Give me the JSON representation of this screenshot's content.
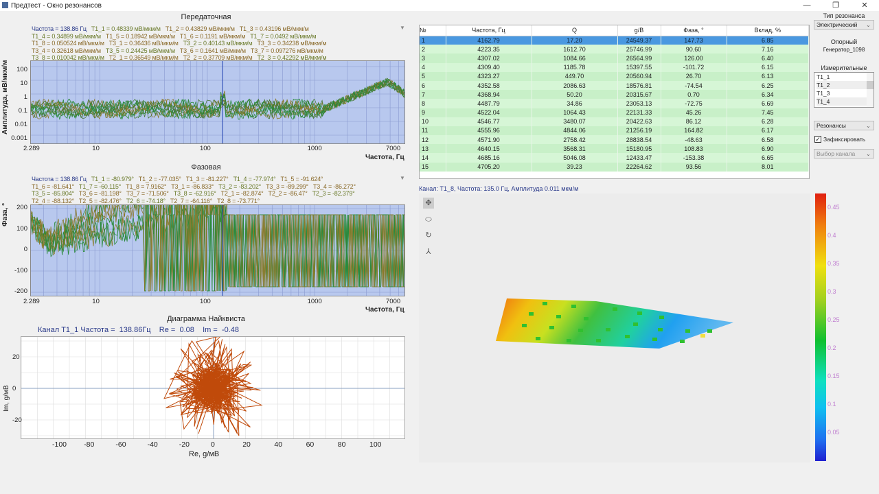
{
  "window": {
    "title": "Предтест - Окно резонансов",
    "minimize": "—",
    "restore": "❐",
    "close": "✕"
  },
  "transfer": {
    "title": "Передаточная",
    "legend_freq": "Частота = 138.86 Гц",
    "legend": [
      "T1_1 = 0.48339 мВ/мкм/м",
      "T1_2 = 0.43829 мВ/мкм/м",
      "T1_3 = 0.43196 мВ/мкм/м",
      "T1_4 = 0.34899 мВ/мкм/м",
      "T1_5 = 0.18942 мВ/мкм/м",
      "T1_6 = 0.1191 мВ/мкм/м",
      "T1_7 = 0.0492 мВ/мкм/м",
      "T1_8 = 0.050524 мВ/мкм/м",
      "T3_1 = 0.36436 мВ/мкм/м",
      "T3_2 = 0.40143 мВ/мкм/м",
      "T3_3 = 0.34238 мВ/мкм/м",
      "T3_4 = 0.32618 мВ/мкм/м",
      "T3_5 = 0.24425 мВ/мкм/м",
      "T3_6 = 0.1641 мВ/мкм/м",
      "T3_7 = 0.097276 мВ/мкм/м",
      "T3_8 = 0.010042 мВ/мкм/м",
      "T2_1 = 0.36549 мВ/мкм/м",
      "T2_2 = 0.37709 мВ/мкм/м",
      "T2_3 = 0.42292 мВ/мкм/м"
    ],
    "ylabel": "Амплитуда, мВ/мкм/м",
    "xlabel": "Частота, Гц",
    "yticks": [
      "100",
      "10",
      "1",
      "0.1",
      "0.01",
      "0.001"
    ],
    "xticks": [
      "2.289",
      "10",
      "100",
      "1000",
      "7000"
    ]
  },
  "phase": {
    "title": "Фазовая",
    "legend_freq": "Частота = 138.86 Гц",
    "legend": [
      "T1_1 = -80.979°",
      "T1_2 = -77.035°",
      "T1_3 = -81.227°",
      "T1_4 = -77.974°",
      "T1_5 = -91.624°",
      "T1_6 = -81.641°",
      "T1_7 = -60.115°",
      "T1_8 = 7.9162°",
      "T3_1 = -86.833°",
      "T3_2 = -83.202°",
      "T3_3 = -89.299°",
      "T3_4 = -86.272°",
      "T3_5 = -85.804°",
      "T3_6 = -81.198°",
      "T3_7 = -71.506°",
      "T3_8 = -62.916°",
      "T2_1 = -82.874°",
      "T2_2 = -86.47°",
      "T2_3 = -82.379°",
      "T2_4 = -88.132°",
      "T2_5 = -82.476°",
      "T2_6 = -74.18°",
      "T2_7 = -64.116°",
      "T2_8 = -73.771°"
    ],
    "ylabel": "Фаза, °",
    "xlabel": "Частота, Гц",
    "yticks": [
      "200",
      "100",
      "0",
      "-100",
      "-200"
    ],
    "xticks": [
      "2.289",
      "10",
      "100",
      "1000",
      "7000"
    ]
  },
  "nyquist": {
    "title": "Диаграмма Найквиста",
    "info": "Канал T1_1 Частота =  138.86Гц    Re =  0.08    Im =  -0.48",
    "ylabel": "Im, g/мВ",
    "xlabel": "Re, g/мВ",
    "yticks": [
      "20",
      "0",
      "-20"
    ],
    "xticks": [
      "-100",
      "-80",
      "-60",
      "-40",
      "-20",
      "0",
      "20",
      "40",
      "60",
      "80",
      "100"
    ]
  },
  "table": {
    "headers": [
      "№",
      "Частота, Гц",
      "Q",
      "g/B",
      "Фаза, °",
      "Вклад, %"
    ],
    "rows": [
      [
        "1",
        "4162.79",
        "17.20",
        "24549.37",
        "147.73",
        "6.85"
      ],
      [
        "2",
        "4223.35",
        "1612.70",
        "25746.99",
        "90.60",
        "7.16"
      ],
      [
        "3",
        "4307.02",
        "1084.66",
        "26564.99",
        "126.00",
        "6.40"
      ],
      [
        "4",
        "4309.40",
        "1185.78",
        "15397.55",
        "-101.72",
        "6.15"
      ],
      [
        "5",
        "4323.27",
        "449.70",
        "20560.94",
        "26.70",
        "6.13"
      ],
      [
        "6",
        "4352.58",
        "2086.63",
        "18576.81",
        "-74.54",
        "6.25"
      ],
      [
        "7",
        "4368.94",
        "50.20",
        "20315.67",
        "0.70",
        "6.34"
      ],
      [
        "8",
        "4487.79",
        "34.86",
        "23053.13",
        "-72.75",
        "6.69"
      ],
      [
        "9",
        "4522.04",
        "1064.43",
        "22131.33",
        "45.26",
        "7.45"
      ],
      [
        "10",
        "4546.77",
        "3480.07",
        "20422.63",
        "86.12",
        "6.28"
      ],
      [
        "11",
        "4555.96",
        "4844.06",
        "21256.19",
        "164.82",
        "6.17"
      ],
      [
        "12",
        "4571.90",
        "2758.42",
        "28838.54",
        "-48.63",
        "6.58"
      ],
      [
        "13",
        "4640.15",
        "3568.31",
        "15180.95",
        "108.83",
        "6.90"
      ],
      [
        "14",
        "4685.16",
        "5046.08",
        "12433.47",
        "-153.38",
        "6.65"
      ],
      [
        "15",
        "4705.20",
        "39.23",
        "22264.62",
        "93.56",
        "8.01"
      ]
    ]
  },
  "side": {
    "res_type_label": "Тип резонанса",
    "res_type": "Электрический",
    "ref_label": "Опорный",
    "ref_value": "Генератор_1098",
    "meas_label": "Измерительные",
    "meas_items": [
      "T1_1",
      "T1_2",
      "T1_3",
      "T1_4"
    ],
    "mode": "Резонансы",
    "fix_label": "Зафиксировать",
    "fix_checked": true,
    "channel_placeholder": "Выбор канала"
  },
  "view3d": {
    "info": "Канал: T1_8, Частота: 135.0 Гц, Амплитуда 0.011 мкм/м",
    "colorbar_ticks": [
      "0.45",
      "0.4",
      "0.35",
      "0.3",
      "0.25",
      "0.2",
      "0.15",
      "0.1",
      "0.05"
    ]
  },
  "colors": {
    "plot_bg": "#b8c8ee",
    "trace_green": "#2a8a3a",
    "trace_olive": "#8a7a2a",
    "nyquist": "#c04a0a",
    "selected_row": "#4a98e0"
  }
}
